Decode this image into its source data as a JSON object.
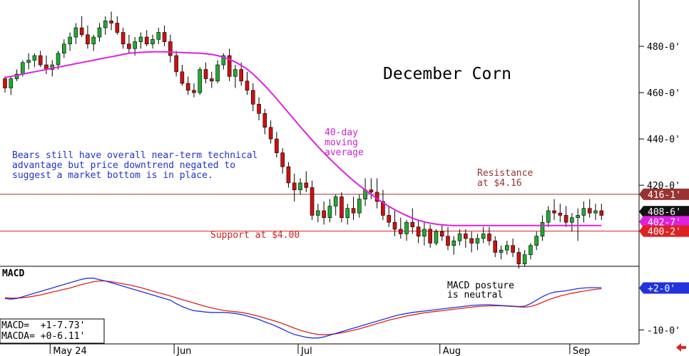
{
  "colors": {
    "background": "#ffffff",
    "up_candle": "#22aa33",
    "down_candle": "#cc1111",
    "moving_average": "#e020e0",
    "resistance_line": "#993333",
    "support_line": "#dd2222",
    "macd_line": "#2233dd",
    "macda_line": "#dd2222",
    "annotation_blue": "#2233cc",
    "annotation_red": "#cc2222",
    "annotation_magenta": "#cc22cc",
    "nav_arrow": "#dd2222"
  },
  "chart_data": [
    {
      "type": "candlestick",
      "title": "December Corn",
      "y_unit": "cents/bushel",
      "ylim": [
        385,
        500
      ],
      "y_ticks": [
        "420-0'",
        "440-0'",
        "460-0'",
        "480-0'"
      ],
      "y_tick_values": [
        420,
        440,
        460,
        480
      ],
      "x_tick_labels": [
        "May 24",
        "Jun",
        "Jul",
        "Aug",
        "Sep"
      ],
      "x_tick_index": [
        8,
        29,
        50,
        74,
        96
      ],
      "grid": false,
      "series": [
        {
          "name": "December Corn",
          "ohlc": [
            [
              466,
              467,
              460,
              462
            ],
            [
              462,
              467,
              459,
              466
            ],
            [
              466,
              470,
              465,
              468
            ],
            [
              468,
              474,
              467,
              473
            ],
            [
              473,
              477,
              470,
              474
            ],
            [
              474,
              477,
              471,
              476
            ],
            [
              476,
              478,
              471,
              472
            ],
            [
              472,
              476,
              468,
              470
            ],
            [
              470,
              474,
              467,
              472
            ],
            [
              472,
              478,
              470,
              477
            ],
            [
              477,
              483,
              475,
              481
            ],
            [
              481,
              486,
              478,
              484
            ],
            [
              484,
              490,
              481,
              488
            ],
            [
              488,
              493,
              484,
              485
            ],
            [
              485,
              489,
              479,
              481
            ],
            [
              481,
              485,
              478,
              484
            ],
            [
              484,
              490,
              482,
              488
            ],
            [
              488,
              493,
              485,
              491
            ],
            [
              491,
              495,
              487,
              490
            ],
            [
              490,
              493,
              485,
              486
            ],
            [
              486,
              488,
              479,
              481
            ],
            [
              481,
              485,
              477,
              479
            ],
            [
              479,
              484,
              476,
              482
            ],
            [
              482,
              486,
              479,
              484
            ],
            [
              484,
              487,
              480,
              481
            ],
            [
              481,
              485,
              479,
              483
            ],
            [
              483,
              488,
              481,
              486
            ],
            [
              486,
              489,
              480,
              482
            ],
            [
              482,
              485,
              473,
              476
            ],
            [
              476,
              478,
              467,
              469
            ],
            [
              469,
              472,
              463,
              464
            ],
            [
              464,
              467,
              459,
              461
            ],
            [
              461,
              464,
              458,
              460
            ],
            [
              460,
              471,
              459,
              470
            ],
            [
              470,
              473,
              464,
              466
            ],
            [
              466,
              469,
              462,
              465
            ],
            [
              465,
              474,
              464,
              472
            ],
            [
              472,
              477,
              470,
              476
            ],
            [
              476,
              479,
              465,
              467
            ],
            [
              467,
              472,
              462,
              470
            ],
            [
              470,
              473,
              463,
              465
            ],
            [
              465,
              469,
              459,
              461
            ],
            [
              461,
              464,
              452,
              455
            ],
            [
              455,
              458,
              448,
              451
            ],
            [
              451,
              453,
              442,
              445
            ],
            [
              445,
              448,
              438,
              440
            ],
            [
              440,
              443,
              432,
              434
            ],
            [
              434,
              436,
              425,
              428
            ],
            [
              428,
              430,
              419,
              421
            ],
            [
              421,
              425,
              413,
              418
            ],
            [
              418,
              423,
              416,
              421
            ],
            [
              421,
              426,
              417,
              419
            ],
            [
              419,
              422,
              405,
              407
            ],
            [
              407,
              412,
              404,
              409
            ],
            [
              409,
              413,
              403,
              406
            ],
            [
              406,
              414,
              404,
              411
            ],
            [
              411,
              416,
              407,
              415
            ],
            [
              415,
              417,
              404,
              406
            ],
            [
              406,
              412,
              403,
              410
            ],
            [
              410,
              415,
              405,
              408
            ],
            [
              408,
              416,
              406,
              414
            ],
            [
              414,
              423,
              411,
              418
            ],
            [
              418,
              423,
              414,
              417
            ],
            [
              417,
              423,
              410,
              413
            ],
            [
              413,
              418,
              405,
              407
            ],
            [
              407,
              411,
              402,
              404
            ],
            [
              404,
              409,
              398,
              401
            ],
            [
              401,
              406,
              397,
              399
            ],
            [
              399,
              405,
              396,
              404
            ],
            [
              404,
              410,
              399,
              402
            ],
            [
              402,
              405,
              395,
              398
            ],
            [
              398,
              404,
              394,
              401
            ],
            [
              401,
              403,
              393,
              395
            ],
            [
              395,
              401,
              394,
              400
            ],
            [
              400,
              403,
              396,
              398
            ],
            [
              398,
              402,
              392,
              394
            ],
            [
              394,
              398,
              390,
              396
            ],
            [
              396,
              401,
              394,
              399
            ],
            [
              399,
              401,
              393,
              397
            ],
            [
              397,
              400,
              391,
              395
            ],
            [
              395,
              399,
              392,
              397
            ],
            [
              397,
              402,
              395,
              399
            ],
            [
              399,
              402,
              394,
              396
            ],
            [
              396,
              398,
              389,
              391
            ],
            [
              391,
              394,
              388,
              392
            ],
            [
              392,
              396,
              390,
              394
            ],
            [
              394,
              397,
              389,
              391
            ],
            [
              391,
              393,
              384,
              386
            ],
            [
              386,
              392,
              385,
              390
            ],
            [
              390,
              395,
              388,
              394
            ],
            [
              394,
              400,
              392,
              398
            ],
            [
              398,
              407,
              396,
              404
            ],
            [
              404,
              411,
              402,
              409
            ],
            [
              409,
              414,
              405,
              408
            ],
            [
              408,
              412,
              404,
              407
            ],
            [
              407,
              411,
              402,
              404
            ],
            [
              404,
              408,
              400,
              406
            ],
            [
              406,
              410,
              396,
              407
            ],
            [
              407,
              413,
              404,
              410
            ],
            [
              410,
              414,
              406,
              408
            ],
            [
              408,
              412,
              405,
              409
            ],
            [
              409,
              412,
              405,
              407
            ]
          ]
        },
        {
          "name": "40-day moving average",
          "values": [
            466.5,
            467.0,
            467.5,
            468.0,
            468.5,
            469.0,
            469.5,
            470.0,
            470.5,
            471.0,
            471.5,
            472.0,
            472.5,
            473.0,
            473.5,
            474.0,
            474.5,
            475.0,
            475.5,
            476.0,
            476.5,
            477.0,
            477.2,
            477.4,
            477.5,
            477.6,
            477.6,
            477.6,
            477.5,
            477.4,
            477.3,
            477.2,
            477.1,
            477.0,
            476.8,
            476.5,
            476.0,
            475.3,
            474.4,
            473.2,
            471.8,
            470.1,
            468.0,
            465.6,
            463.0,
            460.2,
            457.3,
            454.3,
            451.3,
            448.3,
            445.3,
            442.4,
            439.5,
            436.7,
            434.0,
            431.4,
            428.9,
            426.5,
            424.2,
            422.0,
            419.9,
            417.9,
            416.0,
            414.2,
            412.5,
            410.9,
            409.4,
            408.1,
            406.9,
            405.8,
            404.9,
            404.2,
            403.6,
            403.2,
            402.9,
            402.7,
            402.6,
            402.6,
            402.6,
            402.6,
            402.6,
            402.6,
            402.6,
            402.6,
            402.6,
            402.6,
            402.6,
            402.6,
            402.6,
            402.6,
            402.6,
            402.6,
            402.6,
            402.6,
            402.6,
            402.6,
            402.6,
            402.6,
            402.6,
            402.6,
            402.6,
            402.6
          ]
        }
      ],
      "reference_lines": [
        {
          "name": "Resistance at $4.16",
          "value": 416.1
        },
        {
          "name": "Support at $4.00",
          "value": 400.2
        }
      ],
      "price_labels": [
        "416-1'",
        "408-6'",
        "402-7'",
        "400-2'"
      ],
      "price_label_values": [
        416.1,
        408.6,
        402.7,
        400.2
      ]
    },
    {
      "type": "line",
      "title": "MACD",
      "ylim": [
        -14,
        8
      ],
      "y_ticks": [
        "-10-0'"
      ],
      "y_tick_values": [
        -10
      ],
      "grid": false,
      "series": [
        {
          "name": "MACD",
          "values": [
            -1.0,
            -1.2,
            -1.0,
            -0.5,
            0.0,
            0.5,
            1.0,
            1.5,
            2.0,
            2.5,
            3.0,
            3.5,
            4.0,
            4.5,
            4.8,
            4.8,
            4.4,
            4.0,
            3.5,
            3.0,
            2.5,
            2.0,
            1.5,
            1.0,
            0.5,
            0.0,
            -0.5,
            -1.0,
            -1.5,
            -2.5,
            -3.3,
            -4.0,
            -4.5,
            -4.7,
            -4.9,
            -5.0,
            -5.0,
            -5.0,
            -5.1,
            -5.3,
            -5.6,
            -6.0,
            -6.5,
            -7.0,
            -7.7,
            -8.3,
            -9.0,
            -9.8,
            -10.6,
            -11.3,
            -11.7,
            -12.1,
            -12.3,
            -12.3,
            -12.0,
            -11.5,
            -11.0,
            -10.5,
            -10.0,
            -9.5,
            -9.0,
            -8.5,
            -8.0,
            -7.5,
            -7.0,
            -6.5,
            -6.0,
            -5.6,
            -5.3,
            -5.0,
            -4.8,
            -4.6,
            -4.4,
            -4.2,
            -4.0,
            -3.8,
            -3.6,
            -3.4,
            -3.2,
            -3.0,
            -2.9,
            -2.8,
            -2.8,
            -2.9,
            -3.0,
            -3.1,
            -3.2,
            -3.3,
            -3.2,
            -2.5,
            -1.5,
            -0.5,
            0.3,
            0.8,
            1.0,
            1.2,
            1.5,
            1.8,
            2.0,
            2.1,
            2.1,
            2.1
          ]
        },
        {
          "name": "MACDA",
          "values": [
            -0.8,
            -0.9,
            -0.9,
            -0.8,
            -0.6,
            -0.3,
            0.0,
            0.4,
            0.8,
            1.2,
            1.6,
            2.0,
            2.5,
            3.0,
            3.4,
            3.8,
            4.0,
            4.0,
            3.8,
            3.5,
            3.2,
            2.9,
            2.5,
            2.1,
            1.6,
            1.1,
            0.6,
            0.2,
            -0.3,
            -0.8,
            -1.3,
            -1.8,
            -2.3,
            -2.8,
            -3.3,
            -3.7,
            -4.1,
            -4.4,
            -4.6,
            -4.8,
            -5.0,
            -5.3,
            -5.7,
            -6.1,
            -6.6,
            -7.1,
            -7.6,
            -8.2,
            -8.8,
            -9.5,
            -10.1,
            -10.6,
            -11.0,
            -11.3,
            -11.4,
            -11.3,
            -11.1,
            -10.8,
            -10.5,
            -10.1,
            -9.7,
            -9.2,
            -8.7,
            -8.2,
            -7.7,
            -7.2,
            -6.8,
            -6.4,
            -6.0,
            -5.7,
            -5.4,
            -5.1,
            -4.9,
            -4.7,
            -4.5,
            -4.3,
            -4.1,
            -3.9,
            -3.7,
            -3.5,
            -3.3,
            -3.2,
            -3.1,
            -3.1,
            -3.1,
            -3.2,
            -3.3,
            -3.4,
            -3.5,
            -3.3,
            -2.8,
            -2.1,
            -1.4,
            -0.8,
            -0.3,
            0.1,
            0.5,
            0.8,
            1.1,
            1.4,
            1.6,
            1.8
          ]
        }
      ],
      "price_labels": [
        "+2-0'"
      ],
      "price_label_values": [
        2.0
      ]
    }
  ],
  "texts": {
    "title": "December Corn",
    "ma_label_line1": "40-day",
    "ma_label_line2": "moving",
    "ma_label_line3": "average",
    "bears_line1": "Bears still have overall near-term technical",
    "bears_line2": "advantage but price downtrend negated to",
    "bears_line3": "suggest a market bottom is in place.",
    "resistance_line1": "Resistance",
    "resistance_line2": "at $4.16",
    "support": "Support at $4.00",
    "macd_title": "MACD",
    "macd_note_line1": "MACD posture",
    "macd_note_line2": "is neutral",
    "macd_value": "MACD=  +1-7.73'",
    "macda_value": "MACDA= +0-6.11'",
    "nav_arrow_icon": "left-arrow-icon"
  }
}
